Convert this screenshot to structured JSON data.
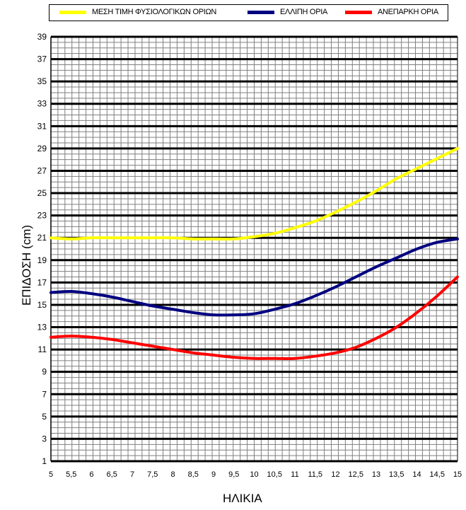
{
  "chart_data": {
    "type": "line",
    "title": "",
    "xlabel": "ΗΛΙΚΙΑ",
    "ylabel": "ΕΠΙΔΟΣΗ  (cm)",
    "xlim": [
      5,
      15
    ],
    "ylim": [
      1,
      39
    ],
    "x_ticks": [
      "5",
      "5,5",
      "6",
      "6,5",
      "7",
      "7,5",
      "8",
      "8,5",
      "9",
      "9,5",
      "10",
      "10,5",
      "11",
      "11,5",
      "12",
      "12,5",
      "13",
      "13,5",
      "14",
      "14,5",
      "15"
    ],
    "y_ticks": [
      "1",
      "3",
      "5",
      "7",
      "9",
      "11",
      "13",
      "15",
      "17",
      "19",
      "21",
      "23",
      "25",
      "27",
      "29",
      "31",
      "33",
      "35",
      "37",
      "39"
    ],
    "grid": true,
    "legend_position": "top",
    "x": [
      5,
      5.5,
      6,
      6.5,
      7,
      7.5,
      8,
      8.5,
      9,
      9.5,
      10,
      10.5,
      11,
      11.5,
      12,
      12.5,
      13,
      13.5,
      14,
      14.5,
      15
    ],
    "series": [
      {
        "name": "ΜΕΣΗ ΤΙΜΗ ΦΥΣΙΟΛΟΓΙΚΩΝ ΟΡΙΩΝ",
        "color": "#ffff00",
        "values": [
          21,
          20.9,
          21,
          21,
          21,
          21,
          21,
          20.9,
          20.9,
          20.9,
          21.1,
          21.4,
          21.9,
          22.5,
          23.3,
          24.2,
          25.2,
          26.3,
          27.2,
          28.1,
          29
        ]
      },
      {
        "name": "ΕΛΛΙΠΗ ΟΡΙΑ",
        "color": "#000080",
        "values": [
          16.1,
          16.2,
          16,
          15.7,
          15.3,
          14.9,
          14.6,
          14.3,
          14.1,
          14.1,
          14.2,
          14.6,
          15.1,
          15.8,
          16.6,
          17.5,
          18.4,
          19.2,
          20,
          20.6,
          20.9
        ]
      },
      {
        "name": "ΑΝΕΠΑΡΚΗ ΟΡΙΑ",
        "color": "#ff0000",
        "values": [
          12.1,
          12.2,
          12.1,
          11.9,
          11.6,
          11.3,
          11,
          10.7,
          10.5,
          10.3,
          10.2,
          10.2,
          10.2,
          10.4,
          10.7,
          11.2,
          12,
          13,
          14.3,
          15.8,
          17.5
        ]
      }
    ]
  }
}
